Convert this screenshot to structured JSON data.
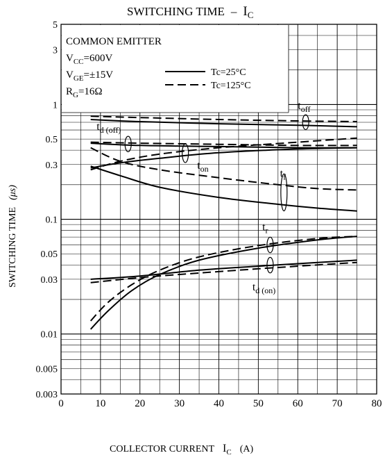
{
  "chart_data": {
    "type": "line",
    "title_main": "SWITCHING TIME",
    "title_dash": "–",
    "title_var": "I",
    "title_sub": "C",
    "xlabel_main": "COLLECTOR CURRENT",
    "xlabel_var": "I",
    "xlabel_sub": "C",
    "xlabel_unit": "(A)",
    "ylabel": "SWITCHING TIME",
    "ylabel_unit": "(μs)",
    "xlim": [
      0,
      80
    ],
    "ylim": [
      0.003,
      5
    ],
    "yscale": "log",
    "grid": true,
    "x_ticks": [
      "0",
      "10",
      "20",
      "30",
      "40",
      "50",
      "60",
      "70",
      "80"
    ],
    "y_ticks": [
      {
        "value": 0.003,
        "label": "0.003"
      },
      {
        "value": 0.005,
        "label": "0.005"
      },
      {
        "value": 0.01,
        "label": "0.01"
      },
      {
        "value": 0.03,
        "label": "0.03"
      },
      {
        "value": 0.05,
        "label": "0.05"
      },
      {
        "value": 0.1,
        "label": "0.1"
      },
      {
        "value": 0.3,
        "label": "0.3"
      },
      {
        "value": 0.5,
        "label": "0.5"
      },
      {
        "value": 1,
        "label": "1"
      },
      {
        "value": 3,
        "label": "3"
      },
      {
        "value": 5,
        "label": "5"
      }
    ],
    "conditions": {
      "line1": "COMMON EMITTER",
      "line2_pre": "V",
      "line2_sub": "CC",
      "line2_post": "=600V",
      "line3_pre": "V",
      "line3_sub": "GE",
      "line3_post": "=±15V",
      "line4_pre": "R",
      "line4_sub": "G",
      "line4_post": "=16Ω"
    },
    "legend": [
      {
        "label": "Tc=25°C",
        "style": "solid"
      },
      {
        "label": "Tc=125°C",
        "style": "dashed"
      }
    ],
    "curve_labels": {
      "toff": {
        "base": "t",
        "sub": "off"
      },
      "tdoff": {
        "base": "t",
        "sub": "d (off)"
      },
      "ton": {
        "base": "t",
        "sub": "on"
      },
      "tf": {
        "base": "t",
        "sub": "f"
      },
      "tr": {
        "base": "t",
        "sub": "r"
      },
      "tdon": {
        "base": "t",
        "sub": "d (on)"
      }
    },
    "series": [
      {
        "curve": "toff",
        "style": "solid",
        "x": [
          7.5,
          20,
          40,
          60,
          75
        ],
        "y": [
          0.74,
          0.71,
          0.68,
          0.66,
          0.64
        ]
      },
      {
        "curve": "toff",
        "style": "dashed",
        "x": [
          7.5,
          20,
          40,
          60,
          75
        ],
        "y": [
          0.79,
          0.77,
          0.74,
          0.72,
          0.71
        ]
      },
      {
        "curve": "tdoff",
        "style": "solid",
        "x": [
          7.5,
          20,
          40,
          60,
          75
        ],
        "y": [
          0.46,
          0.44,
          0.43,
          0.42,
          0.42
        ]
      },
      {
        "curve": "tdoff",
        "style": "dashed",
        "x": [
          7.5,
          20,
          40,
          60,
          75
        ],
        "y": [
          0.47,
          0.46,
          0.45,
          0.44,
          0.44
        ]
      },
      {
        "curve": "ton",
        "style": "solid",
        "x": [
          7.5,
          15,
          25,
          40,
          60,
          75
        ],
        "y": [
          0.28,
          0.31,
          0.34,
          0.38,
          0.41,
          0.42
        ]
      },
      {
        "curve": "ton",
        "style": "dashed",
        "x": [
          7.5,
          15,
          25,
          40,
          60,
          75
        ],
        "y": [
          0.27,
          0.32,
          0.37,
          0.42,
          0.47,
          0.51
        ]
      },
      {
        "curve": "tf",
        "style": "solid",
        "x": [
          7.5,
          15,
          25,
          40,
          55,
          65,
          75
        ],
        "y": [
          0.29,
          0.24,
          0.19,
          0.155,
          0.135,
          0.125,
          0.118
        ]
      },
      {
        "curve": "tf",
        "style": "dashed",
        "x": [
          7.5,
          15,
          25,
          40,
          55,
          65,
          75
        ],
        "y": [
          0.42,
          0.32,
          0.27,
          0.23,
          0.2,
          0.185,
          0.18
        ]
      },
      {
        "curve": "tr",
        "style": "solid",
        "x": [
          7.5,
          12,
          18,
          25,
          35,
          50,
          65,
          75
        ],
        "y": [
          0.011,
          0.016,
          0.024,
          0.033,
          0.044,
          0.056,
          0.066,
          0.071
        ]
      },
      {
        "curve": "tr",
        "style": "dashed",
        "x": [
          7.5,
          12,
          18,
          25,
          35,
          50,
          65,
          75
        ],
        "y": [
          0.013,
          0.019,
          0.027,
          0.036,
          0.047,
          0.059,
          0.068,
          0.071
        ]
      },
      {
        "curve": "tdon",
        "style": "solid",
        "x": [
          7.5,
          20,
          35,
          50,
          65,
          75
        ],
        "y": [
          0.03,
          0.032,
          0.036,
          0.039,
          0.042,
          0.044
        ]
      },
      {
        "curve": "tdon",
        "style": "dashed",
        "x": [
          7.5,
          20,
          35,
          50,
          65,
          75
        ],
        "y": [
          0.028,
          0.031,
          0.034,
          0.037,
          0.04,
          0.042
        ]
      }
    ]
  }
}
